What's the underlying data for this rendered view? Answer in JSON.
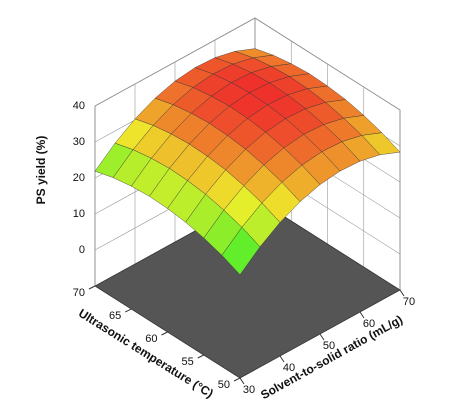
{
  "chart_data": {
    "type": "surface",
    "zlabel": "PS yield (%)",
    "xlabel": "Solvent-to-solid ratio (mL/g)",
    "ylabel": "Ultrasonic temperature (°C)",
    "x": [
      30,
      35,
      40,
      45,
      50,
      55,
      60,
      65,
      70
    ],
    "y": [
      50,
      52.5,
      55,
      57.5,
      60,
      62.5,
      65,
      67.5,
      70
    ],
    "z": [
      [
        18.7,
        23.4,
        27.1,
        29.8,
        31.5,
        32.2,
        31.9,
        30.6,
        28.3
      ],
      [
        20.9,
        25.6,
        29.3,
        32.0,
        33.7,
        34.4,
        34.1,
        32.8,
        30.5
      ],
      [
        22.5,
        27.2,
        30.9,
        33.6,
        35.3,
        36.0,
        35.7,
        34.4,
        32.1
      ],
      [
        23.7,
        28.4,
        32.1,
        34.8,
        36.5,
        37.2,
        36.9,
        35.6,
        33.3
      ],
      [
        24.3,
        29.0,
        32.7,
        35.4,
        37.1,
        37.8,
        37.5,
        36.2,
        33.9
      ],
      [
        24.5,
        29.2,
        32.9,
        35.6,
        37.3,
        38.0,
        37.7,
        36.4,
        34.1
      ],
      [
        24.1,
        28.8,
        32.5,
        35.2,
        36.9,
        37.6,
        37.3,
        36.0,
        33.7
      ],
      [
        23.3,
        28.0,
        31.7,
        34.4,
        36.1,
        36.8,
        36.5,
        35.2,
        32.9
      ],
      [
        21.9,
        26.6,
        30.3,
        33.0,
        34.7,
        35.4,
        35.1,
        33.8,
        31.5
      ]
    ],
    "xlim": [
      30,
      70
    ],
    "ylim": [
      50,
      70
    ],
    "zlim": [
      -10,
      40
    ],
    "xticks": [
      30,
      40,
      50,
      60,
      70
    ],
    "yticks": [
      50,
      55,
      60,
      65,
      70
    ],
    "zticks": [
      0,
      10,
      20,
      30,
      40
    ],
    "grid": true
  }
}
